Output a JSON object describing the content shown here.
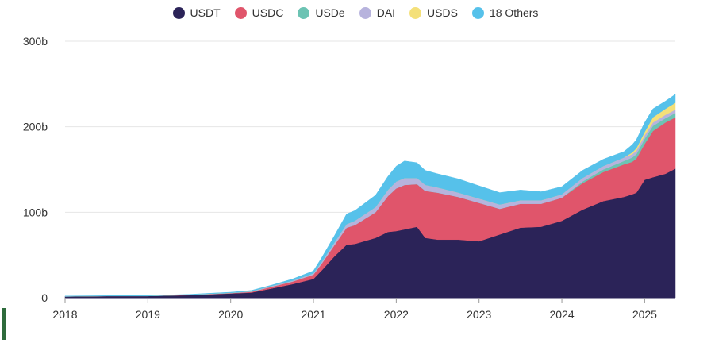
{
  "legend": {
    "items": [
      {
        "label": "USDT",
        "color": "#2b2358"
      },
      {
        "label": "USDC",
        "color": "#e0556b"
      },
      {
        "label": "USDe",
        "color": "#6cc3b3"
      },
      {
        "label": "DAI",
        "color": "#b7b3dd"
      },
      {
        "label": "USDS",
        "color": "#f4e079"
      },
      {
        "label": "18 Others",
        "color": "#56c1ea"
      }
    ]
  },
  "chart_data": {
    "type": "area",
    "stacked": true,
    "x_unit": "year",
    "x_ticks": [
      "2018",
      "2019",
      "2020",
      "2021",
      "2022",
      "2023",
      "2024",
      "2025"
    ],
    "y_ticks": [
      "0",
      "100b",
      "200b",
      "300b"
    ],
    "ylim": [
      0,
      300
    ],
    "xlim": [
      2018.0,
      2025.37
    ],
    "grid": "horizontal",
    "legend_position": "top",
    "x": [
      2018.0,
      2018.5,
      2019.0,
      2019.5,
      2019.75,
      2020.0,
      2020.25,
      2020.5,
      2020.75,
      2021.0,
      2021.1,
      2021.25,
      2021.4,
      2021.5,
      2021.75,
      2021.9,
      2022.0,
      2022.1,
      2022.25,
      2022.35,
      2022.5,
      2022.75,
      2023.0,
      2023.25,
      2023.5,
      2023.75,
      2024.0,
      2024.25,
      2024.5,
      2024.75,
      2024.85,
      2024.9,
      2025.0,
      2025.1,
      2025.25,
      2025.37
    ],
    "series": [
      {
        "name": "USDT",
        "color": "#2b2358",
        "values": [
          1.5,
          2,
          2,
          3,
          4,
          5,
          6,
          11,
          16,
          22,
          32,
          48,
          62,
          63,
          70,
          77,
          78,
          80,
          83,
          70,
          68,
          68,
          66,
          74,
          82,
          83,
          90,
          103,
          113,
          118,
          121,
          123,
          138,
          141,
          145,
          151
        ]
      },
      {
        "name": "USDC",
        "color": "#e0556b",
        "values": [
          0,
          0,
          0,
          0.3,
          0.4,
          0.5,
          1,
          2,
          3,
          5,
          8,
          13,
          20,
          22,
          30,
          42,
          50,
          52,
          50,
          55,
          55,
          50,
          45,
          30,
          28,
          27,
          27,
          31,
          34,
          38,
          38,
          40,
          42,
          54,
          60,
          60
        ]
      },
      {
        "name": "USDe",
        "color": "#6cc3b3",
        "values": [
          0,
          0,
          0,
          0,
          0,
          0,
          0,
          0,
          0,
          0,
          0,
          0,
          0,
          0,
          0,
          0,
          0,
          0,
          0,
          0,
          0,
          0,
          0,
          0,
          0,
          0,
          0,
          2,
          3,
          4,
          5,
          5,
          6,
          6,
          5,
          5
        ]
      },
      {
        "name": "DAI",
        "color": "#b7b3dd",
        "values": [
          0.2,
          0.1,
          0.1,
          0.2,
          0.3,
          0.3,
          0.5,
          1,
          1,
          1.5,
          2,
          3,
          4,
          5,
          6,
          7,
          8,
          8,
          7,
          7,
          6,
          5,
          5,
          5,
          4,
          4,
          4,
          4,
          4,
          4,
          4,
          4,
          4,
          4,
          4,
          4
        ]
      },
      {
        "name": "USDS",
        "color": "#f4e079",
        "values": [
          0,
          0,
          0,
          0,
          0,
          0,
          0,
          0,
          0,
          0,
          0,
          0,
          0,
          0,
          0,
          0,
          0,
          0,
          0,
          0,
          0,
          0,
          0,
          0,
          0,
          0,
          0,
          0,
          0,
          0,
          2,
          3,
          4,
          6,
          7,
          8
        ]
      },
      {
        "name": "18 Others",
        "color": "#56c1ea",
        "values": [
          0.3,
          0.4,
          0.5,
          0.5,
          0.6,
          0.7,
          1,
          1,
          2,
          3,
          5,
          8,
          12,
          12,
          14,
          16,
          18,
          20,
          18,
          17,
          16,
          16,
          15,
          14,
          12,
          10,
          9,
          9,
          8,
          7,
          9,
          10,
          11,
          10,
          9,
          10
        ]
      }
    ]
  }
}
